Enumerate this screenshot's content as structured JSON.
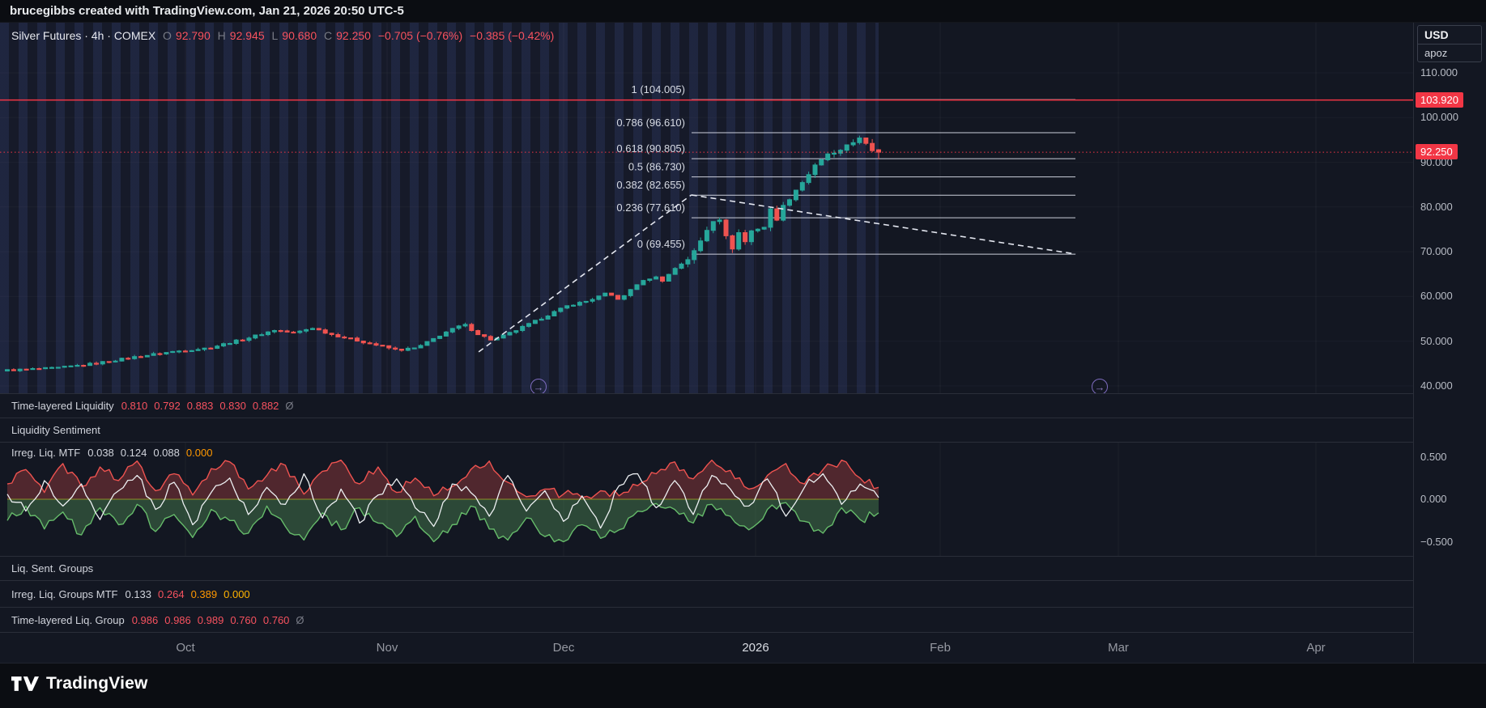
{
  "meta": {
    "attribution": "brucegibbs created with TradingView.com, Jan 21, 2026 20:50 UTC-5"
  },
  "symbol": {
    "title": "Silver Futures · 4h · COMEX",
    "o_label": "O",
    "o": "92.790",
    "h_label": "H",
    "h": "92.945",
    "l_label": "L",
    "l": "90.680",
    "c_label": "C",
    "c": "92.250",
    "change_abs": "−0.705 (−0.76%)",
    "change_pct": "−0.385 (−0.42%)"
  },
  "axis": {
    "currency": "USD",
    "unit": "apoz",
    "price_labels": [
      "110.000",
      "100.000",
      "90.000",
      "80.000",
      "70.000",
      "60.000",
      "50.000",
      "40.000"
    ],
    "price_values": [
      110,
      100,
      90,
      80,
      70,
      60,
      50,
      40
    ],
    "badges": [
      {
        "text": "103.920",
        "price": 103.92
      },
      {
        "text": "92.250",
        "price": 92.25
      }
    ],
    "osc_labels": [
      "0.500",
      "0.000",
      "−0.500"
    ],
    "osc_values": [
      0.5,
      0,
      -0.5
    ]
  },
  "panes": {
    "tll": {
      "label": "Time-layered Liquidity",
      "values": [
        "0.810",
        "0.792",
        "0.883",
        "0.830",
        "0.882"
      ],
      "suffix": "Ø"
    },
    "ls": {
      "label": "Liquidity Sentiment"
    },
    "ilm": {
      "label": "Irreg. Liq. MTF",
      "v1": "0.038",
      "v2": "0.124",
      "v3": "0.088",
      "v4": "0.000"
    },
    "lsg": {
      "label": "Liq. Sent. Groups"
    },
    "ilgm": {
      "label": "Irreg. Liq. Groups MTF",
      "v1": "0.133",
      "v2": "0.264",
      "v3": "0.389",
      "v4": "0.000"
    },
    "tllg": {
      "label": "Time-layered Liq. Group",
      "values": [
        "0.986",
        "0.986",
        "0.989",
        "0.760",
        "0.760"
      ],
      "suffix": "Ø"
    }
  },
  "time_axis": {
    "labels": [
      "Oct",
      "Nov",
      "Dec",
      "2026",
      "Feb",
      "Mar",
      "Apr"
    ]
  },
  "footer": {
    "brand": "TradingView"
  },
  "icons": {
    "replay_arrow": "→"
  },
  "colors": {
    "red": "#f23645",
    "salmon": "#f7525f",
    "orange": "#ff9800",
    "up": "#26a69a",
    "down": "#ef5350",
    "purple": "#8e7cc3",
    "osc_green": "#66bb6a",
    "osc_red": "#ef5350",
    "osc_white": "#eceff1",
    "zero_line": "#8f8f25"
  },
  "chart_data": {
    "type": "candlestick",
    "title": "Silver Futures 4h COMEX",
    "price_range": [
      40,
      110
    ],
    "current_price": 92.25,
    "alert_price_line": 103.92,
    "last_candle": {
      "o": 92.79,
      "h": 92.945,
      "l": 90.68,
      "c": 92.25
    },
    "up_color": "#26a69a",
    "down_color": "#ef5350",
    "anchors": [
      [
        0,
        43.5
      ],
      [
        0.057,
        44
      ],
      [
        0.1,
        45
      ],
      [
        0.144,
        46.4
      ],
      [
        0.187,
        47.6
      ],
      [
        0.231,
        48.5
      ],
      [
        0.274,
        50.6
      ],
      [
        0.307,
        52.5
      ],
      [
        0.329,
        51.8
      ],
      [
        0.35,
        53
      ],
      [
        0.372,
        51.5
      ],
      [
        0.405,
        50
      ],
      [
        0.448,
        48
      ],
      [
        0.47,
        48.5
      ],
      [
        0.503,
        52
      ],
      [
        0.524,
        53.8
      ],
      [
        0.541,
        51.5
      ],
      [
        0.557,
        50.2
      ],
      [
        0.579,
        52
      ],
      [
        0.601,
        54
      ],
      [
        0.622,
        56
      ],
      [
        0.644,
        58
      ],
      [
        0.666,
        59
      ],
      [
        0.688,
        60.7
      ],
      [
        0.704,
        59.2
      ],
      [
        0.72,
        62.5
      ],
      [
        0.742,
        64.5
      ],
      [
        0.753,
        63.5
      ],
      [
        0.764,
        66
      ],
      [
        0.775,
        67.5
      ],
      [
        0.786,
        69.2
      ],
      [
        0.796,
        72.5
      ],
      [
        0.807,
        76.5
      ],
      [
        0.816,
        78.5
      ],
      [
        0.824,
        73.5
      ],
      [
        0.831,
        70.5
      ],
      [
        0.84,
        74.5
      ],
      [
        0.849,
        71.5
      ],
      [
        0.857,
        76.5
      ],
      [
        0.866,
        74
      ],
      [
        0.875,
        79.5
      ],
      [
        0.883,
        77.5
      ],
      [
        0.892,
        80.5
      ],
      [
        0.901,
        83
      ],
      [
        0.91,
        85
      ],
      [
        0.918,
        87
      ],
      [
        0.927,
        89
      ],
      [
        0.936,
        90.5
      ],
      [
        0.944,
        92.5
      ],
      [
        0.953,
        91
      ],
      [
        0.96,
        93.5
      ],
      [
        0.968,
        94.5
      ],
      [
        0.977,
        95.3
      ],
      [
        0.984,
        94
      ],
      [
        0.99,
        93
      ],
      [
        1,
        92.25
      ]
    ],
    "fib_levels": [
      {
        "label": "1 (104.005)",
        "price": 104.005
      },
      {
        "label": "0.786 (96.610)",
        "price": 96.61
      },
      {
        "label": "0.618 (90.805)",
        "price": 90.805
      },
      {
        "label": "0.5 (86.730)",
        "price": 86.73
      },
      {
        "label": "0.382 (82.655)",
        "price": 82.655
      },
      {
        "label": "0.236 (77.610)",
        "price": 77.61
      },
      {
        "label": "0 (69.455)",
        "price": 69.455
      }
    ],
    "trendlines": [
      {
        "x1": 0.541,
        "p1": 47.6,
        "x2": 0.785,
        "p2": 82.7
      },
      {
        "x1": 0.785,
        "p1": 82.7,
        "x2": 1.226,
        "p2": 69.5
      }
    ],
    "oscillator": {
      "range": [
        -0.5,
        0.5
      ],
      "red": [
        0.18,
        0.35,
        0.08,
        0.42,
        0.15,
        0.38,
        0.22,
        0.45,
        0.1,
        0.3,
        0.05,
        0.36,
        0.44,
        0.12,
        0.28,
        0.4,
        0.06,
        0.33,
        0.46,
        0.18,
        0.38,
        0.08,
        0.25,
        0.04,
        0.15,
        0.35,
        0.45,
        0.2,
        0.03,
        0.12,
        0.06,
        0.02,
        0.1,
        0.04,
        0.16,
        0.3,
        0.44,
        0.24,
        0.46,
        0.34,
        0.12,
        0.28,
        0.42,
        0.18,
        0.35,
        0.46,
        0.25,
        0.14
      ],
      "green": [
        -0.25,
        -0.08,
        -0.35,
        -0.15,
        -0.42,
        -0.1,
        -0.3,
        -0.06,
        -0.38,
        -0.18,
        -0.45,
        -0.12,
        -0.25,
        -0.4,
        -0.08,
        -0.32,
        -0.48,
        -0.16,
        -0.36,
        -0.1,
        -0.28,
        -0.44,
        -0.2,
        -0.5,
        -0.3,
        -0.08,
        -0.35,
        -0.48,
        -0.22,
        -0.44,
        -0.5,
        -0.3,
        -0.46,
        -0.36,
        -0.14,
        -0.05,
        -0.12,
        -0.28,
        -0.06,
        -0.2,
        -0.36,
        -0.12,
        -0.04,
        -0.26,
        -0.4,
        -0.1,
        -0.24,
        -0.16
      ],
      "white": [
        0.06,
        -0.14,
        0.22,
        -0.08,
        0.18,
        -0.24,
        0.1,
        0.28,
        -0.12,
        0.2,
        -0.3,
        0.08,
        0.25,
        -0.18,
        0.14,
        -0.06,
        0.3,
        -0.22,
        0.12,
        -0.28,
        0.05,
        0.24,
        -0.1,
        -0.32,
        0.18,
        0.08,
        -0.2,
        0.28,
        -0.14,
        0.1,
        -0.26,
        0.04,
        -0.34,
        0.16,
        0.3,
        -0.1,
        0.22,
        -0.18,
        0.28,
        0.12,
        -0.08,
        0.24,
        -0.2,
        0.14,
        0.3,
        -0.06,
        0.18,
        0.02
      ]
    }
  }
}
